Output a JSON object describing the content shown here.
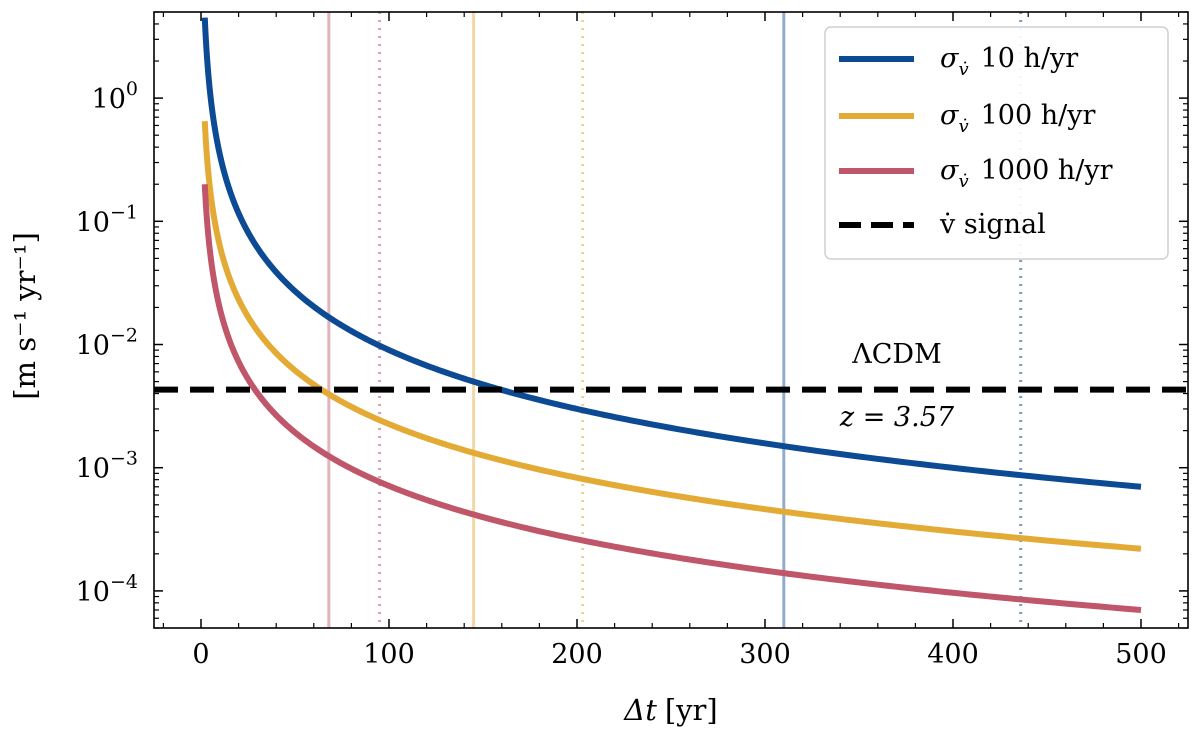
{
  "chart_data": {
    "type": "line",
    "xlabel_sym": "Δt",
    "xlabel_unit": "[yr]",
    "ylabel": "[m s⁻¹ yr⁻¹]",
    "xlim": [
      -25,
      525
    ],
    "ylim": [
      5e-05,
      5
    ],
    "yscale": "log",
    "x_ticks": [
      0,
      100,
      200,
      300,
      400,
      500
    ],
    "x_tick_labels": [
      "0",
      "100",
      "200",
      "300",
      "400",
      "500"
    ],
    "y_ticks": [
      1,
      0.1,
      0.01,
      0.001,
      0.0001
    ],
    "y_tick_labels": [
      {
        "base": "10",
        "exp": "0"
      },
      {
        "base": "10",
        "exp": "−1"
      },
      {
        "base": "10",
        "exp": "−2"
      },
      {
        "base": "10",
        "exp": "−3"
      },
      {
        "base": "10",
        "exp": "−4"
      }
    ],
    "grid": false,
    "legend_position": "top-right",
    "series": [
      {
        "name": "σ 10 h/yr",
        "sym": "σ",
        "sub": "v̇",
        "text": "10 h/yr",
        "color": "#0c4a93",
        "x": [
          2,
          500
        ],
        "y": [
          4.5,
          0.0007
        ],
        "crossing": 145,
        "detection": 310,
        "dotted": 436
      },
      {
        "name": "σ 100 h/yr",
        "sym": "σ",
        "sub": "v̇",
        "text": "100 h/yr",
        "color": "#e3ab35",
        "x": [
          2,
          500
        ],
        "y": [
          0.65,
          0.00022
        ],
        "crossing": 68,
        "detection": 145,
        "dotted": 203
      },
      {
        "name": "σ 1000 h/yr",
        "sym": "σ",
        "sub": "v̇",
        "text": "1000 h/yr",
        "color": "#c0566a",
        "x": [
          2,
          500
        ],
        "y": [
          0.2,
          7e-05
        ],
        "crossing": 31,
        "detection": 68,
        "dotted": 95
      }
    ],
    "signal": {
      "name": "v̇ signal",
      "value": 0.0043,
      "color": "#000000"
    },
    "annotations": {
      "line1": "ΛCDM",
      "line2": "z = 3.57"
    }
  }
}
